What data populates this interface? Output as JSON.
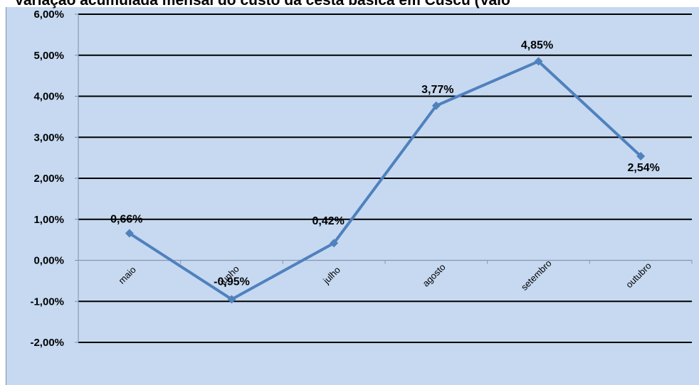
{
  "chart_data": {
    "type": "line",
    "title": "Variação acumulada mensal do custo da cesta básica em Cuscu (Valo",
    "categories": [
      "maio",
      "junho",
      "julho",
      "agosto",
      "setembro",
      "outubro"
    ],
    "series": [
      {
        "values": [
          0.66,
          -0.95,
          0.42,
          3.77,
          4.85,
          2.54
        ]
      }
    ],
    "data_labels": [
      "0,66%",
      "-0,95%",
      "0,42%",
      "3,77%",
      "4,85%",
      "2,54%"
    ],
    "yticks": [
      "6,00%",
      "5,00%",
      "4,00%",
      "3,00%",
      "2,00%",
      "1,00%",
      "0,00%",
      "-1,00%",
      "-2,00%"
    ],
    "ytick_values": [
      6,
      5,
      4,
      3,
      2,
      1,
      0,
      -1,
      -2
    ],
    "ylim": [
      -2,
      6
    ],
    "grid": true,
    "legend": "none",
    "colors": {
      "line": "#4f81bd",
      "plot_background": "#c6d9f1",
      "gridline": "#000000"
    }
  }
}
